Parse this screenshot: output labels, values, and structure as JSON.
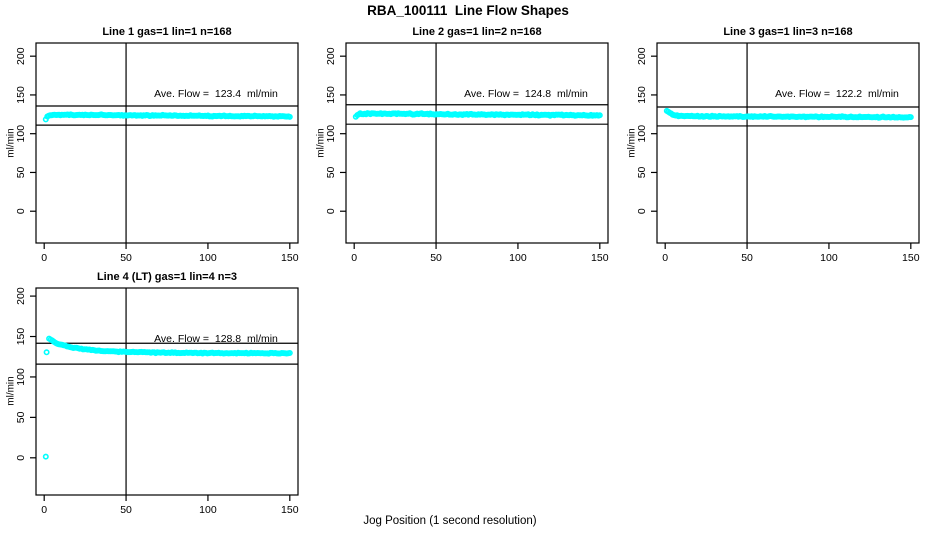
{
  "page_title": "RBA_100111  Line Flow Shapes",
  "x_axis_title": "Jog Position (1 second resolution)",
  "colors": {
    "point_color": "#00FFFF",
    "axis_color": "#000000",
    "text_color": "#000000",
    "background": "#FFFFFF"
  },
  "chart_data": [
    {
      "type": "scatter",
      "title": "Line 1 gas=1 lin=1 n=168",
      "annotation": "Ave. Flow =  123.4  ml/min",
      "ave_flow_ml_min": 123.4,
      "n": 168,
      "ylabel": "ml/min",
      "xlim": [
        -5,
        155
      ],
      "ylim": [
        -41,
        217
      ],
      "xticks": [
        0,
        50,
        100,
        150
      ],
      "yticks": [
        0,
        50,
        100,
        150,
        200
      ],
      "vline_x": 50,
      "hlines": [
        135.7,
        111.1
      ],
      "grid": false,
      "marker": "open-circle",
      "series_profile": [
        [
          1,
          119
        ],
        [
          2,
          123
        ],
        [
          4,
          124.3
        ],
        [
          20,
          124.3
        ],
        [
          60,
          123.6
        ],
        [
          100,
          123
        ],
        [
          150,
          122.2
        ]
      ],
      "n_points": 168,
      "jitter": 0.9,
      "extra_points": []
    },
    {
      "type": "scatter",
      "title": "Line 2 gas=1 lin=2 n=168",
      "annotation": "Ave. Flow =  124.8  ml/min",
      "ave_flow_ml_min": 124.8,
      "n": 168,
      "ylabel": "ml/min",
      "xlim": [
        -5,
        155
      ],
      "ylim": [
        -41,
        217
      ],
      "xticks": [
        0,
        50,
        100,
        150
      ],
      "yticks": [
        0,
        50,
        100,
        150,
        200
      ],
      "vline_x": 50,
      "hlines": [
        137.3,
        112.3
      ],
      "grid": false,
      "marker": "open-circle",
      "series_profile": [
        [
          1,
          122
        ],
        [
          2,
          124.5
        ],
        [
          4,
          125.8
        ],
        [
          20,
          125.8
        ],
        [
          60,
          125
        ],
        [
          100,
          124.4
        ],
        [
          150,
          123.6
        ]
      ],
      "n_points": 168,
      "jitter": 1.0,
      "extra_points": []
    },
    {
      "type": "scatter",
      "title": "Line 3 gas=1 lin=3 n=168",
      "annotation": "Ave. Flow =  122.2  ml/min",
      "ave_flow_ml_min": 122.2,
      "n": 168,
      "ylabel": "ml/min",
      "xlim": [
        -5,
        155
      ],
      "ylim": [
        -41,
        217
      ],
      "xticks": [
        0,
        50,
        100,
        150
      ],
      "yticks": [
        0,
        50,
        100,
        150,
        200
      ],
      "vline_x": 50,
      "hlines": [
        134.4,
        110.0
      ],
      "grid": false,
      "marker": "open-circle",
      "series_profile": [
        [
          1,
          130
        ],
        [
          2,
          128
        ],
        [
          4,
          125
        ],
        [
          8,
          122.8
        ],
        [
          30,
          122.4
        ],
        [
          100,
          121.8
        ],
        [
          150,
          121.2
        ]
      ],
      "n_points": 168,
      "jitter": 0.9,
      "extra_points": []
    },
    {
      "type": "scatter",
      "title": "Line 4 (LT) gas=1 lin=4 n=3",
      "annotation": "Ave. Flow =  128.8  ml/min",
      "ave_flow_ml_min": 128.8,
      "n": 3,
      "ylabel": "ml/min",
      "xlim": [
        -5,
        155
      ],
      "ylim": [
        -46,
        210
      ],
      "xticks": [
        0,
        50,
        100,
        150
      ],
      "yticks": [
        0,
        50,
        100,
        150,
        200
      ],
      "vline_x": 50,
      "hlines": [
        141.7,
        115.9
      ],
      "grid": false,
      "marker": "open-circle",
      "series_profile": [
        [
          3,
          147.5
        ],
        [
          6,
          143
        ],
        [
          10,
          140
        ],
        [
          16,
          136.8
        ],
        [
          24,
          134.3
        ],
        [
          35,
          132.3
        ],
        [
          50,
          131
        ],
        [
          70,
          130.1
        ],
        [
          100,
          129.6
        ],
        [
          150,
          129.3
        ]
      ],
      "n_points": 150,
      "jitter": 0.7,
      "extra_points": [
        [
          1,
          1.5
        ],
        [
          1.5,
          130.5
        ]
      ]
    }
  ]
}
